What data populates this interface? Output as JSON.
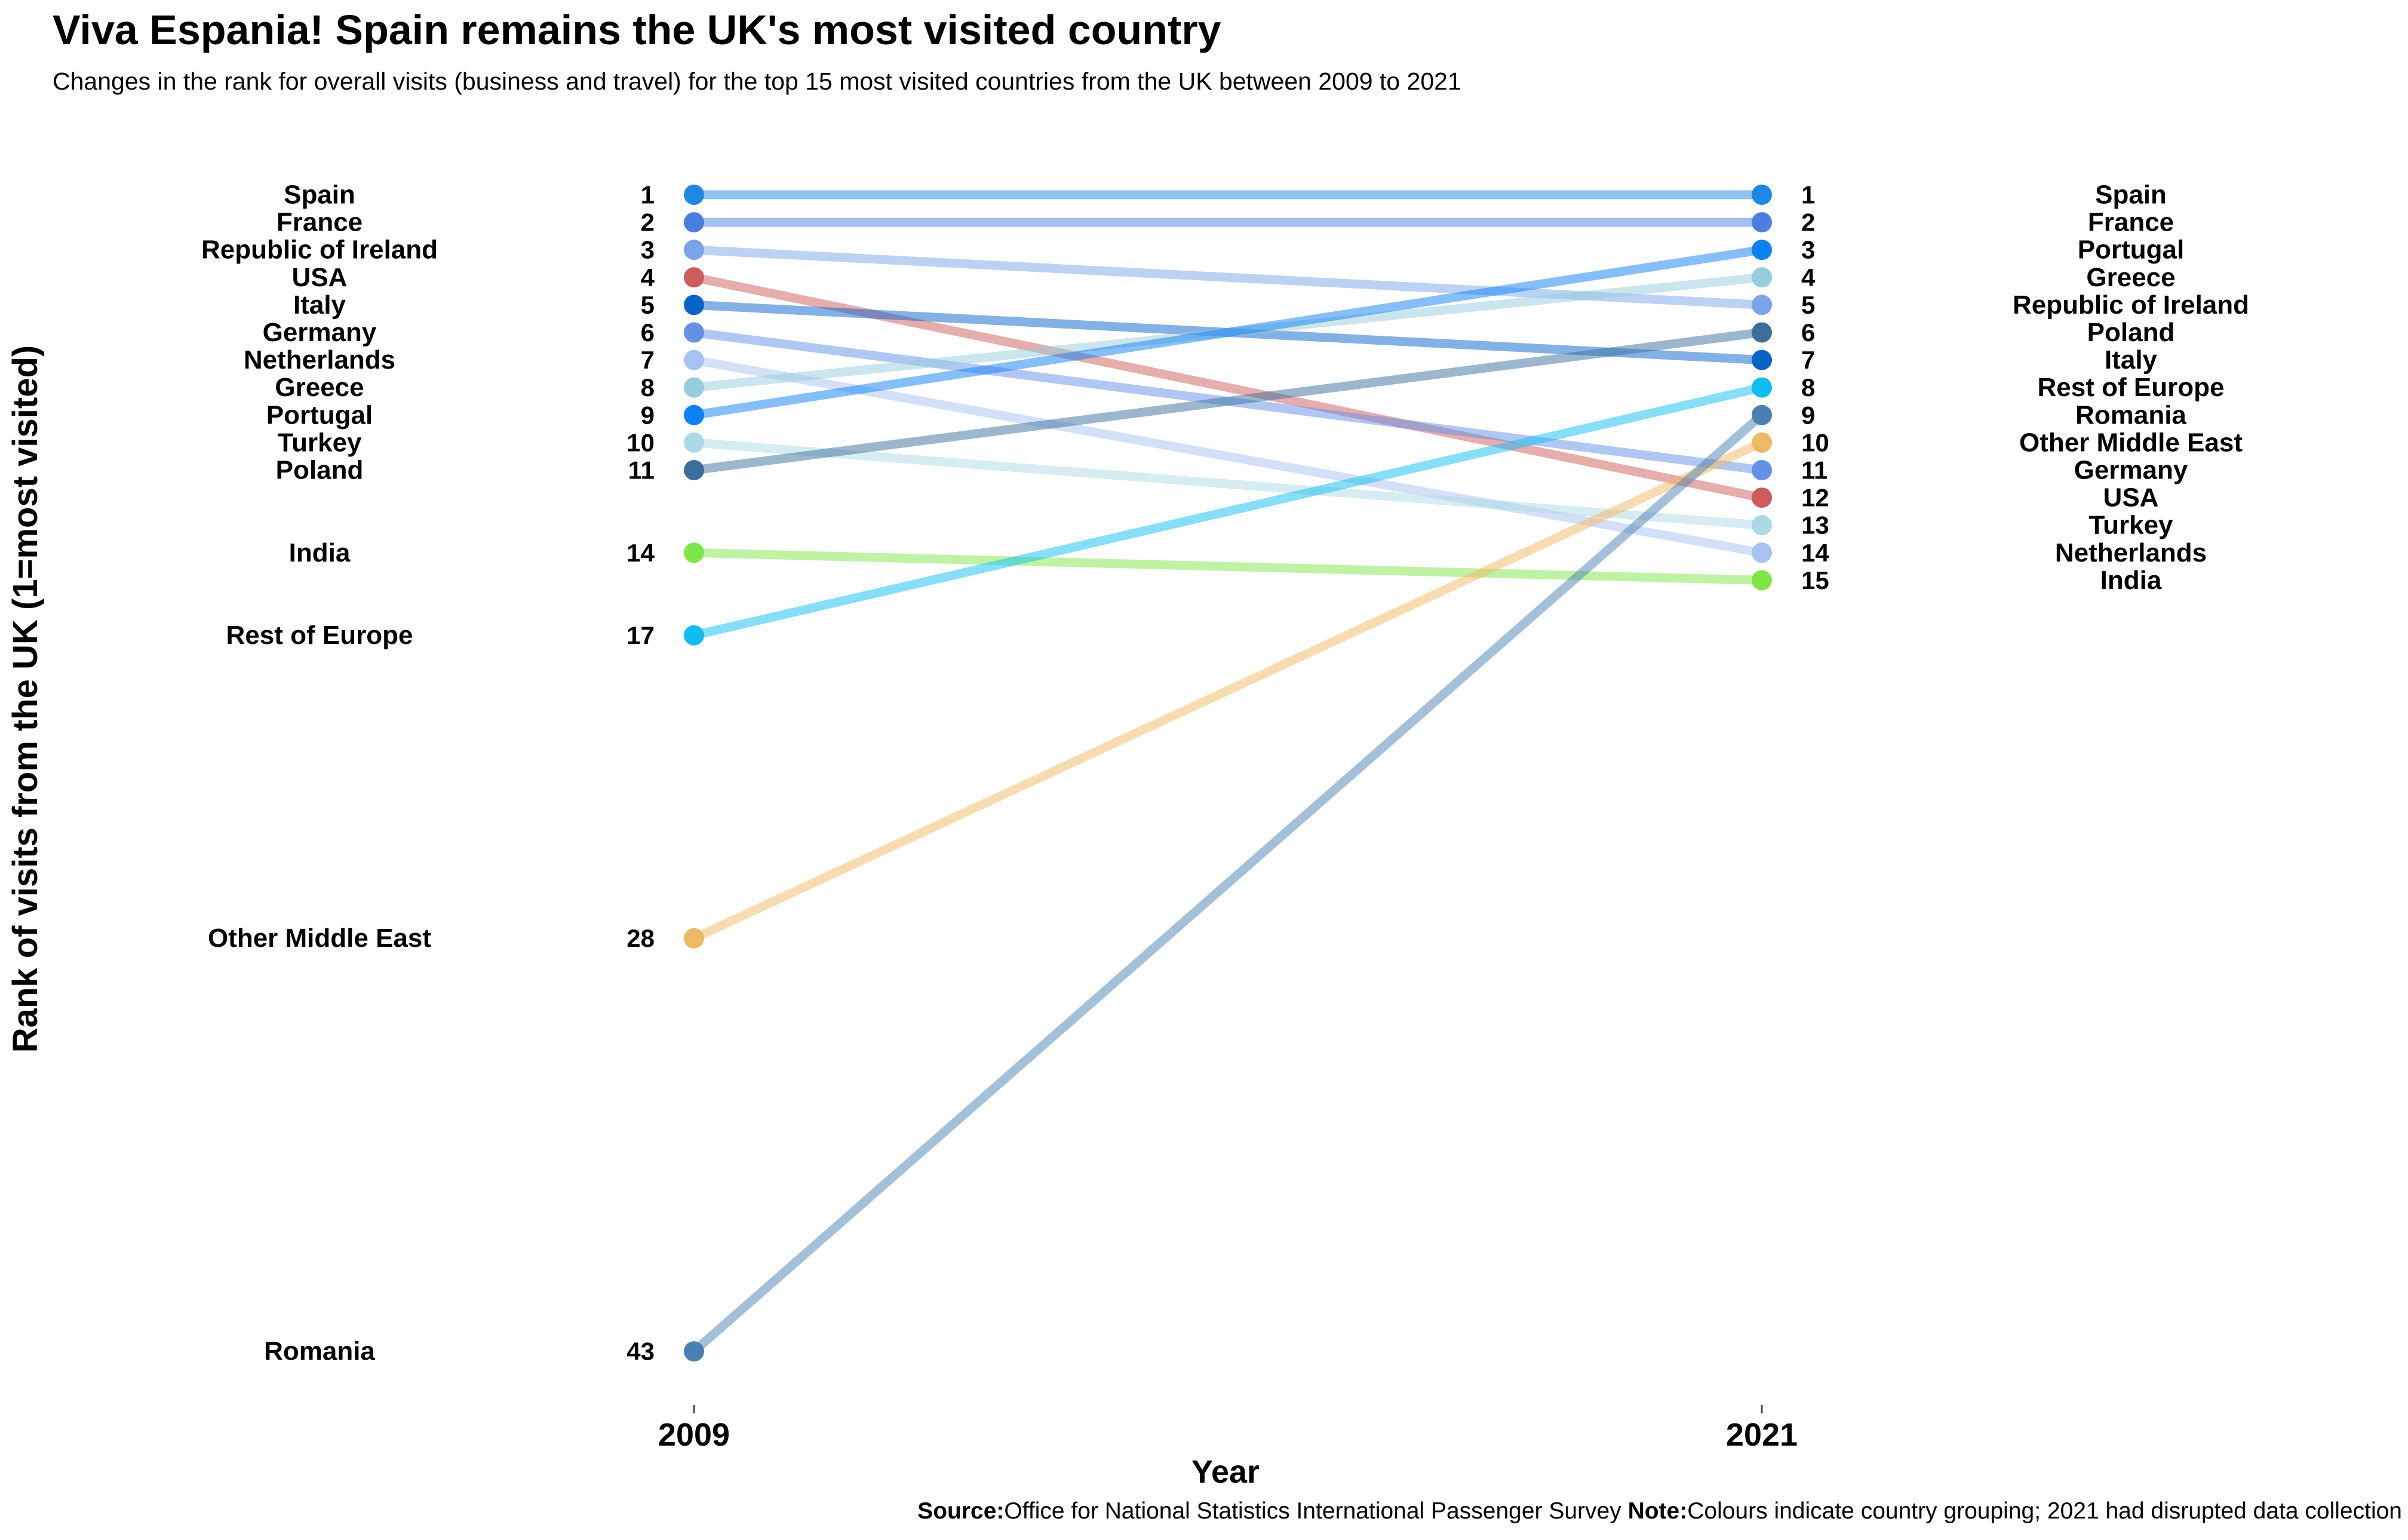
{
  "title": "Viva Espania! Spain remains the UK's most visited country",
  "subtitle": "Changes in the rank for overall visits (business and travel) for the top 15 most visited countries from the UK between 2009 to 2021",
  "caption": {
    "source_label": "Source:",
    "source_text": "Office for National Statistics International Passenger Survey ",
    "note_label": "Note:",
    "note_text": "Colours indicate country grouping; 2021 had disrupted data collection"
  },
  "chart_data": {
    "type": "line",
    "subtype": "slope",
    "x": [
      "2009",
      "2021"
    ],
    "xlabel": "Year",
    "ylabel": "Rank of visits from the UK (1=most visited)",
    "y_reversed": true,
    "ylim": [
      1,
      43
    ],
    "grid": false,
    "legend": "none",
    "series": [
      {
        "name": "Spain",
        "values": [
          1,
          1
        ],
        "color": "#1E88E5"
      },
      {
        "name": "France",
        "values": [
          2,
          2
        ],
        "color": "#4A7FE0"
      },
      {
        "name": "Republic of Ireland",
        "values": [
          3,
          5
        ],
        "color": "#7BA3EC"
      },
      {
        "name": "USA",
        "values": [
          4,
          12
        ],
        "color": "#CD5C5C"
      },
      {
        "name": "Italy",
        "values": [
          5,
          7
        ],
        "color": "#0A63C9"
      },
      {
        "name": "Germany",
        "values": [
          6,
          11
        ],
        "color": "#6490E8"
      },
      {
        "name": "Netherlands",
        "values": [
          7,
          14
        ],
        "color": "#A7C2F2"
      },
      {
        "name": "Greece",
        "values": [
          8,
          4
        ],
        "color": "#96CCDB"
      },
      {
        "name": "Portugal",
        "values": [
          9,
          3
        ],
        "color": "#0D80F2"
      },
      {
        "name": "Turkey",
        "values": [
          10,
          13
        ],
        "color": "#ADD8E6"
      },
      {
        "name": "Poland",
        "values": [
          11,
          6
        ],
        "color": "#3A6F9C"
      },
      {
        "name": "India",
        "values": [
          14,
          15
        ],
        "color": "#7FE64A"
      },
      {
        "name": "Rest of Europe",
        "values": [
          17,
          8
        ],
        "color": "#10BDF0"
      },
      {
        "name": "Other Middle East",
        "values": [
          28,
          10
        ],
        "color": "#EDB962"
      },
      {
        "name": "Romania",
        "values": [
          43,
          9
        ],
        "color": "#4A7FB2"
      }
    ]
  }
}
